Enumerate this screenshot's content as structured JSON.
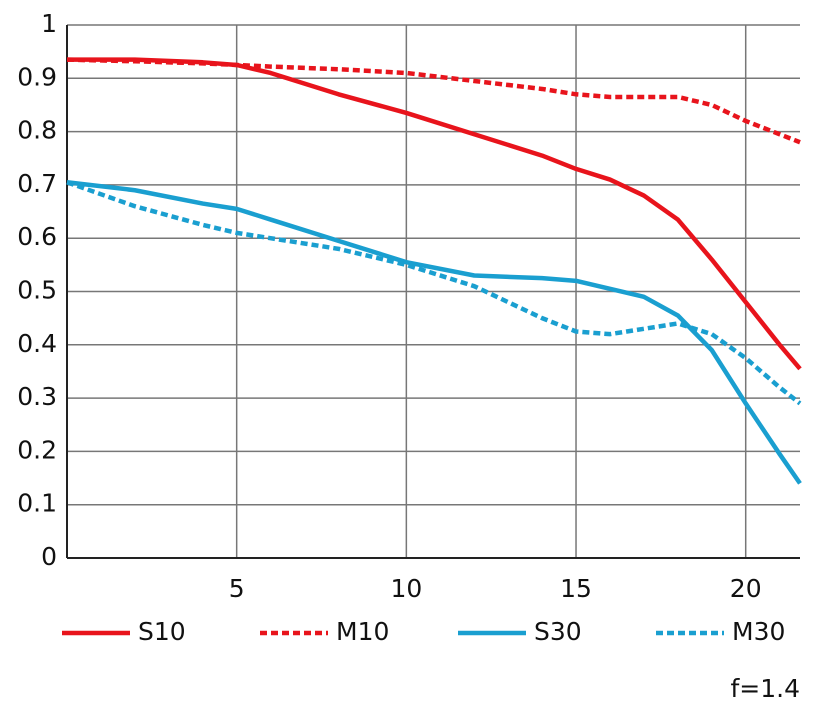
{
  "chart_data": {
    "type": "line",
    "x": [
      0,
      2,
      4,
      5,
      6,
      8,
      10,
      12,
      14,
      15,
      16,
      17,
      18,
      19,
      20,
      21,
      21.6
    ],
    "series": [
      {
        "name": "S10",
        "color": "#e8141c",
        "dash": false,
        "values": [
          0.935,
          0.935,
          0.93,
          0.925,
          0.91,
          0.87,
          0.835,
          0.795,
          0.755,
          0.73,
          0.71,
          0.68,
          0.635,
          0.56,
          0.48,
          0.4,
          0.355
        ]
      },
      {
        "name": "M10",
        "color": "#e8141c",
        "dash": true,
        "values": [
          0.935,
          0.932,
          0.928,
          0.925,
          0.922,
          0.917,
          0.91,
          0.895,
          0.88,
          0.87,
          0.865,
          0.865,
          0.865,
          0.85,
          0.82,
          0.795,
          0.78
        ]
      },
      {
        "name": "S30",
        "color": "#1a9fd0",
        "dash": false,
        "values": [
          0.705,
          0.69,
          0.665,
          0.655,
          0.635,
          0.595,
          0.555,
          0.53,
          0.525,
          0.52,
          0.505,
          0.49,
          0.455,
          0.39,
          0.29,
          0.195,
          0.14
        ]
      },
      {
        "name": "M30",
        "color": "#1a9fd0",
        "dash": true,
        "values": [
          0.705,
          0.66,
          0.625,
          0.61,
          0.6,
          0.58,
          0.55,
          0.51,
          0.45,
          0.425,
          0.42,
          0.43,
          0.44,
          0.42,
          0.375,
          0.32,
          0.29
        ]
      }
    ],
    "xlim": [
      0,
      21.6
    ],
    "xticks": [
      5,
      10,
      15,
      20
    ],
    "ylim": [
      0,
      1
    ],
    "yticks": [
      0,
      0.1,
      0.2,
      0.3,
      0.4,
      0.5,
      0.6,
      0.7,
      0.8,
      0.9,
      1
    ],
    "grid": true,
    "annotation": "f=1.4"
  }
}
